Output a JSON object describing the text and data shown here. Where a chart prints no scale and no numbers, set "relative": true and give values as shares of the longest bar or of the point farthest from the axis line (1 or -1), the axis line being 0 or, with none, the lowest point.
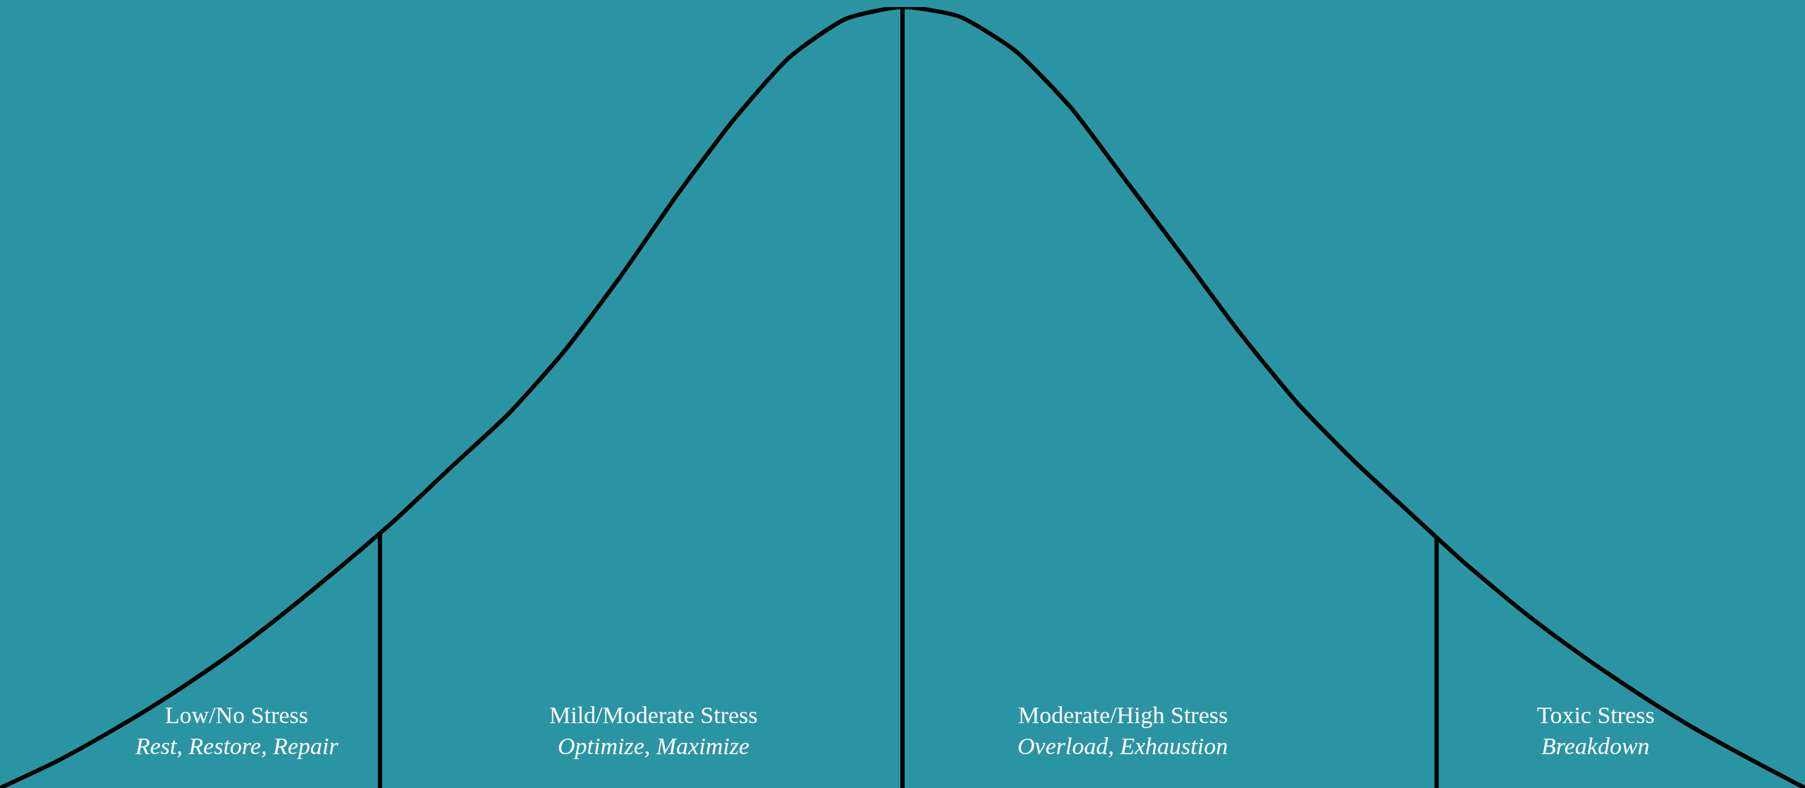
{
  "chart_data": {
    "type": "line",
    "relative": true,
    "color": "#000000",
    "categories": [
      null,
      null,
      null,
      null,
      null,
      null,
      null,
      null,
      null,
      null,
      null,
      null,
      null,
      null,
      null,
      null,
      null,
      null,
      null,
      null,
      null,
      null,
      null,
      null,
      null,
      null,
      null,
      null,
      null,
      null,
      null,
      null,
      null
    ],
    "values": [
      0,
      0.034,
      0.074,
      0.118,
      0.167,
      0.222,
      0.281,
      0.343,
      0.411,
      0.478,
      0.559,
      0.655,
      0.759,
      0.855,
      0.936,
      0.985,
      1.0,
      0.988,
      0.944,
      0.87,
      0.774,
      0.678,
      0.581,
      0.493,
      0.419,
      0.352,
      0.286,
      0.226,
      0.172,
      0.123,
      0.078,
      0.038,
      0
    ],
    "annotations": [
      "Low/No Stress",
      "Rest, Restore, Repair",
      "Mild/Moderate Stress",
      "Optimize, Maximize",
      "Moderate/High Stress",
      "Overload, Exhaustion",
      "Toxic Stress",
      "Breakdown"
    ]
  }
}
